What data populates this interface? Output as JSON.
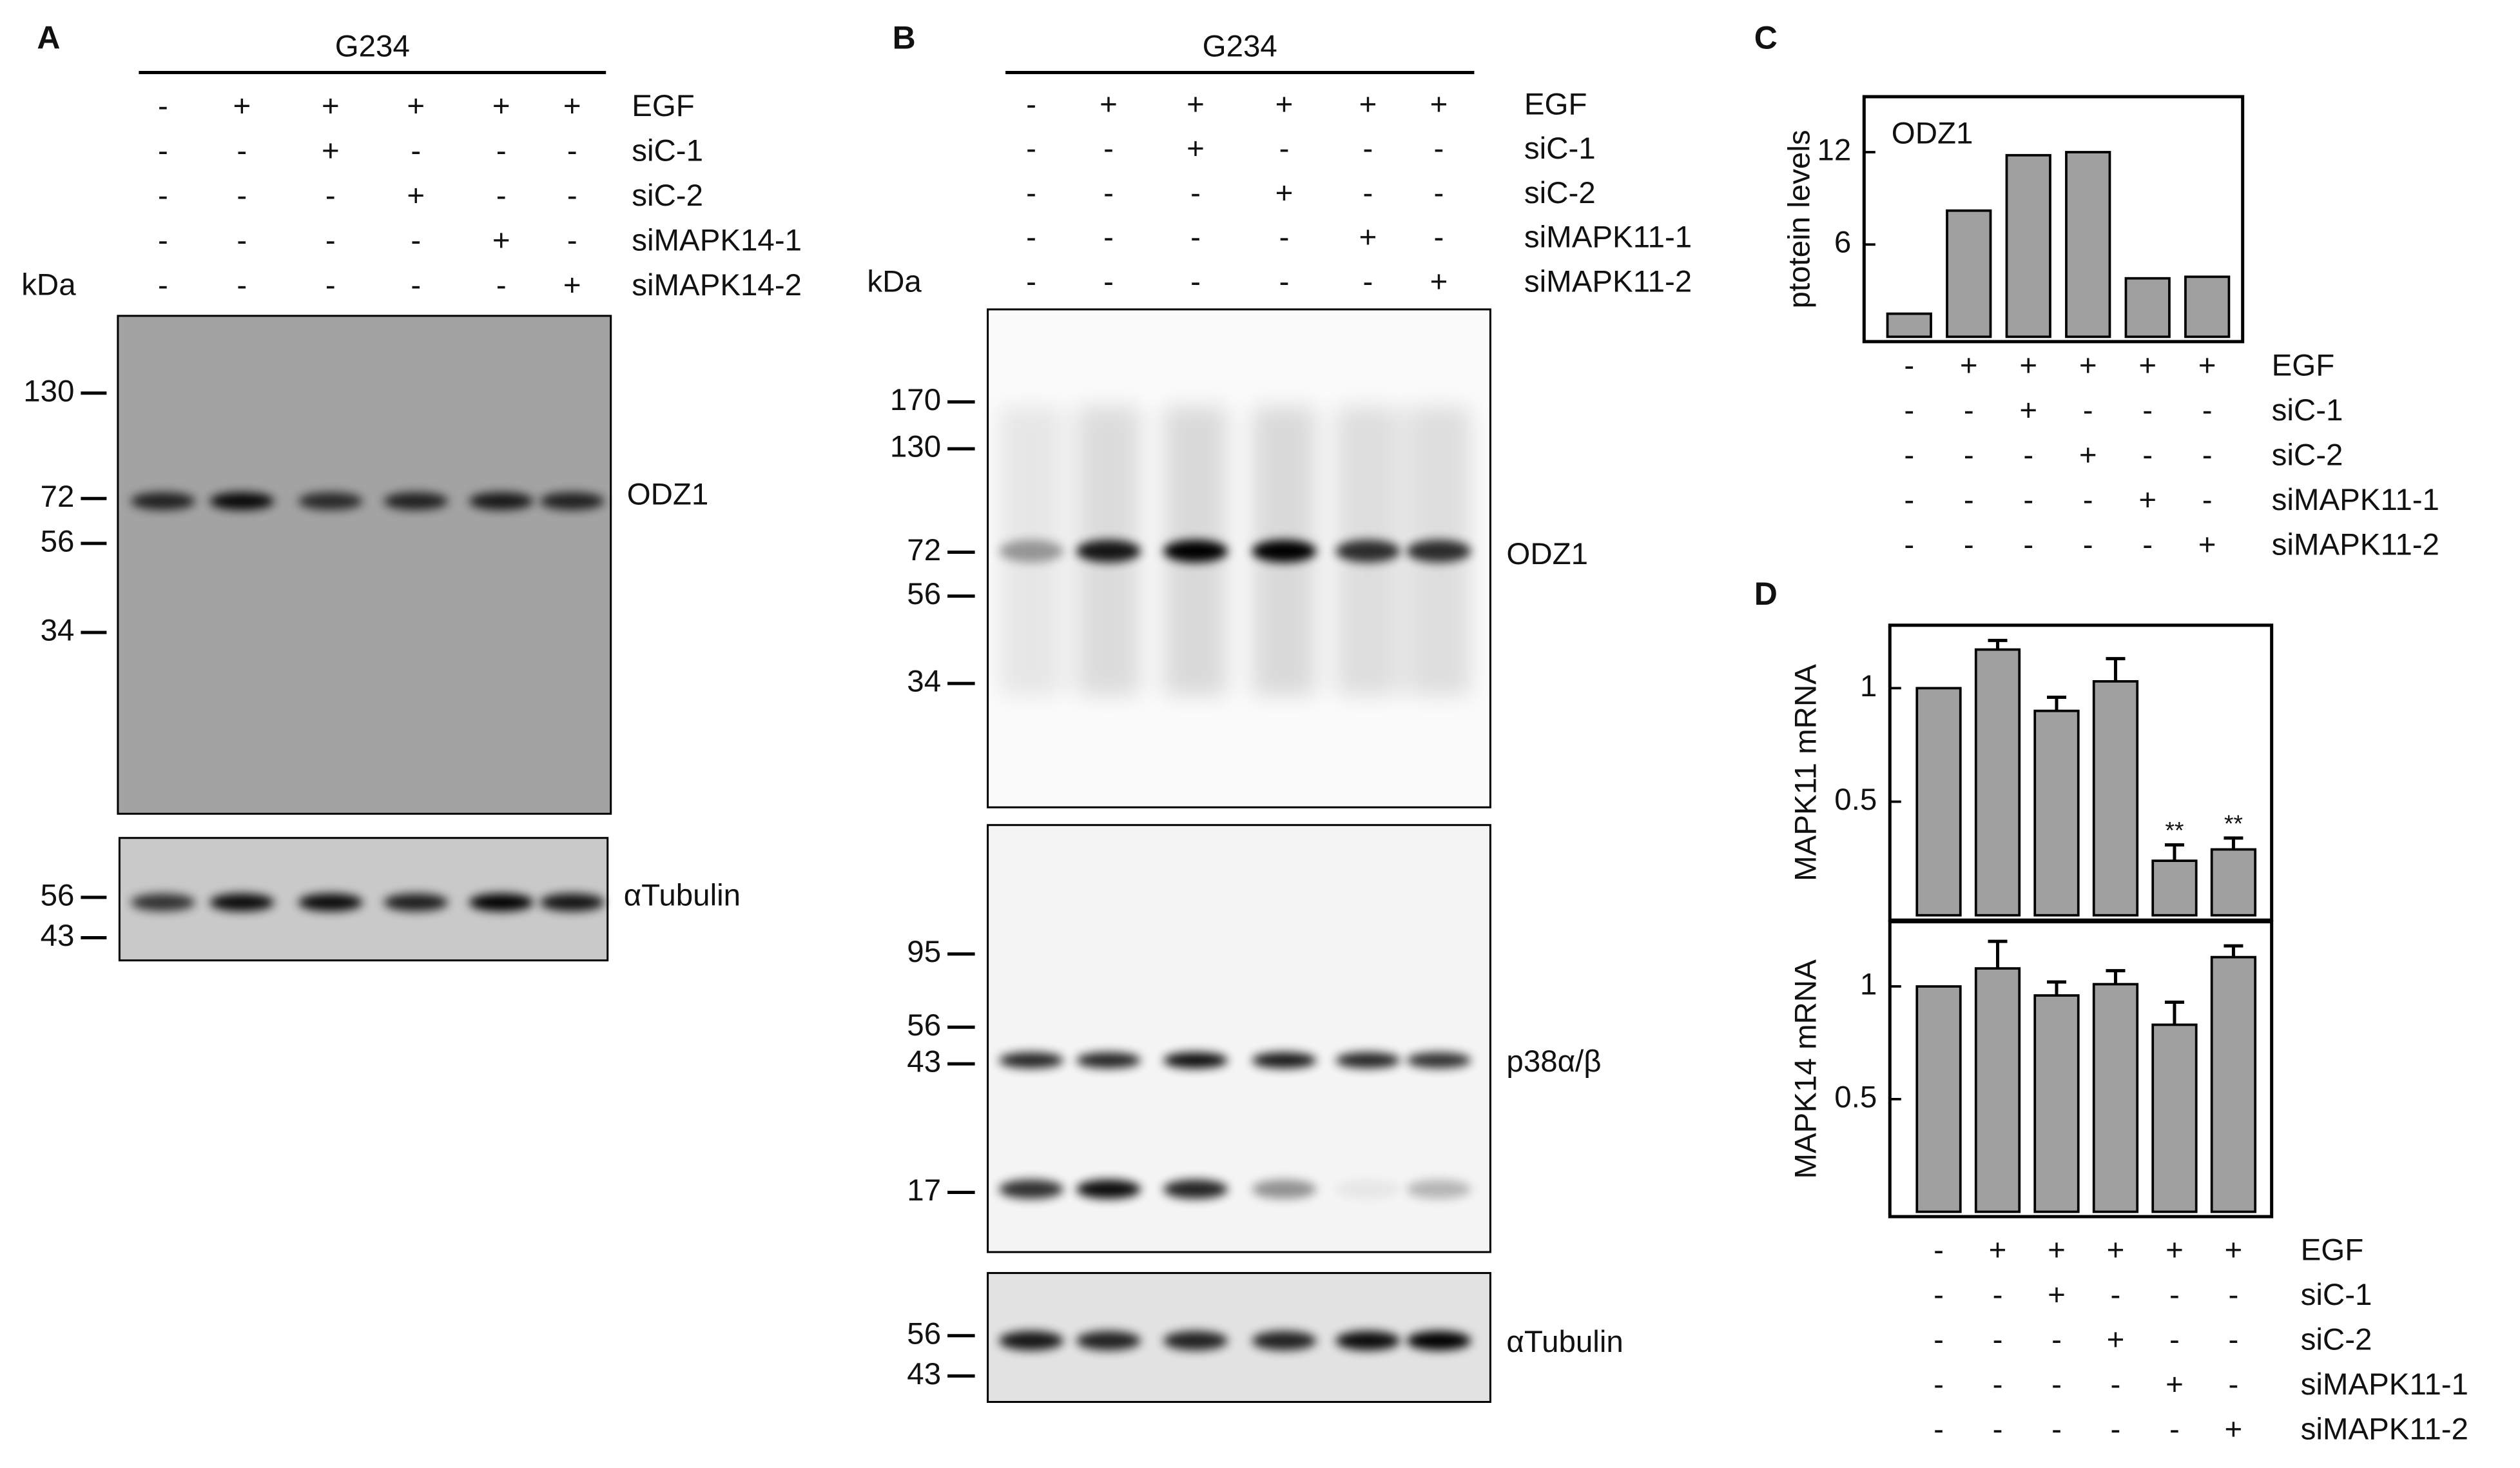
{
  "panels": {
    "A": {
      "letter": "A",
      "cell_line": "G234",
      "kda": "kDa",
      "conditions": [
        {
          "label": "EGF",
          "signs": [
            "-",
            "+",
            "+",
            "+",
            "+",
            "+"
          ]
        },
        {
          "label": "siC-1",
          "signs": [
            "-",
            "-",
            "+",
            "-",
            "-",
            "-"
          ]
        },
        {
          "label": "siC-2",
          "signs": [
            "-",
            "-",
            "-",
            "+",
            "-",
            "-"
          ]
        },
        {
          "label": "siMAPK14-1",
          "signs": [
            "-",
            "-",
            "-",
            "-",
            "+",
            "-"
          ]
        },
        {
          "label": "siMAPK14-2",
          "signs": [
            "-",
            "-",
            "-",
            "-",
            "-",
            "+"
          ]
        }
      ],
      "blots": [
        {
          "label": "ODZ1",
          "markers": [
            130,
            72,
            56,
            34
          ]
        },
        {
          "label": "αTubulin",
          "markers": [
            56,
            43
          ]
        }
      ]
    },
    "B": {
      "letter": "B",
      "cell_line": "G234",
      "kda": "kDa",
      "conditions": [
        {
          "label": "EGF",
          "signs": [
            "-",
            "+",
            "+",
            "+",
            "+",
            "+"
          ]
        },
        {
          "label": "siC-1",
          "signs": [
            "-",
            "-",
            "+",
            "-",
            "-",
            "-"
          ]
        },
        {
          "label": "siC-2",
          "signs": [
            "-",
            "-",
            "-",
            "+",
            "-",
            "-"
          ]
        },
        {
          "label": "siMAPK11-1",
          "signs": [
            "-",
            "-",
            "-",
            "-",
            "+",
            "-"
          ]
        },
        {
          "label": "siMAPK11-2",
          "signs": [
            "-",
            "-",
            "-",
            "-",
            "-",
            "+"
          ]
        }
      ],
      "blots": [
        {
          "label": "ODZ1",
          "markers": [
            170,
            130,
            72,
            56,
            34
          ]
        },
        {
          "label": "p38α/β",
          "markers": [
            95,
            56,
            43,
            17
          ]
        },
        {
          "label": "αTubulin",
          "markers": [
            56,
            43
          ]
        }
      ]
    }
  },
  "chart_data": [
    {
      "type": "bar",
      "letter": "C",
      "annotation": "ODZ1",
      "ylabel": "ptotein levels",
      "values": [
        1.5,
        8.2,
        11.8,
        12,
        3.8,
        3.9
      ],
      "color": "#a0a0a0",
      "ylim": [
        0,
        15.5
      ],
      "yticks": [
        6,
        12
      ],
      "conditions": [
        {
          "label": "EGF",
          "signs": [
            "-",
            "+",
            "+",
            "+",
            "+",
            "+"
          ]
        },
        {
          "label": "siC-1",
          "signs": [
            "-",
            "-",
            "+",
            "-",
            "-",
            "-"
          ]
        },
        {
          "label": "siC-2",
          "signs": [
            "-",
            "-",
            "-",
            "+",
            "-",
            "-"
          ]
        },
        {
          "label": "siMAPK11-1",
          "signs": [
            "-",
            "-",
            "-",
            "-",
            "+",
            "-"
          ]
        },
        {
          "label": "siMAPK11-2",
          "signs": [
            "-",
            "-",
            "-",
            "-",
            "-",
            "+"
          ]
        }
      ]
    },
    {
      "type": "bar",
      "letter": "D",
      "ylabel": "MAPK11 mRNA",
      "values": [
        1,
        1.17,
        0.9,
        1.03,
        0.24,
        0.29
      ],
      "errors": [
        0,
        0.04,
        0.06,
        0.1,
        0.07,
        0.05
      ],
      "significance": [
        null,
        null,
        null,
        null,
        "**",
        "**"
      ],
      "color": "#a0a0a0",
      "ylim": [
        0,
        1.27
      ],
      "yticks": [
        0.5,
        1
      ]
    },
    {
      "type": "bar",
      "ylabel": "MAPK14 mRNA",
      "values": [
        1,
        1.08,
        0.96,
        1.01,
        0.83,
        1.13
      ],
      "errors": [
        0,
        0.12,
        0.06,
        0.06,
        0.1,
        0.05
      ],
      "color": "#a0a0a0",
      "ylim": [
        0,
        1.28
      ],
      "yticks": [
        0.5,
        1
      ],
      "conditions": [
        {
          "label": "EGF",
          "signs": [
            "-",
            "+",
            "+",
            "+",
            "+",
            "+"
          ]
        },
        {
          "label": "siC-1",
          "signs": [
            "-",
            "-",
            "+",
            "-",
            "-",
            "-"
          ]
        },
        {
          "label": "siC-2",
          "signs": [
            "-",
            "-",
            "-",
            "+",
            "-",
            "-"
          ]
        },
        {
          "label": "siMAPK11-1",
          "signs": [
            "-",
            "-",
            "-",
            "-",
            "+",
            "-"
          ]
        },
        {
          "label": "siMAPK11-2",
          "signs": [
            "-",
            "-",
            "-",
            "-",
            "-",
            "+"
          ]
        }
      ]
    }
  ]
}
